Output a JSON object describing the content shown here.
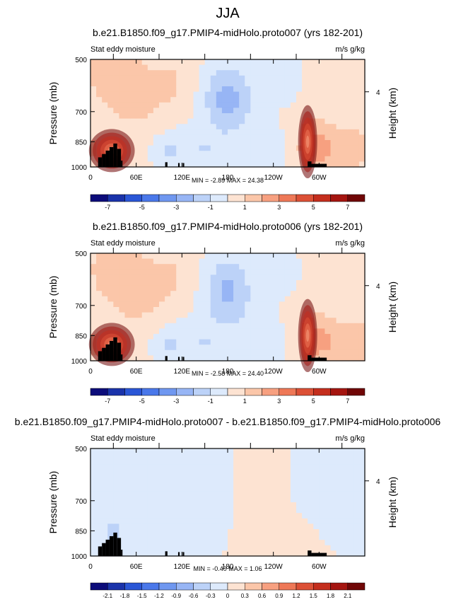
{
  "page_title": "JJA",
  "chart_data": [
    {
      "type": "heatmap",
      "title": "b.e21.B1850.f09_g17.PMIP4-midHolo.proto007 (yrs 182-201)",
      "left_label": "Stat eddy moisture",
      "right_label": "m/s g/kg",
      "ylabel": "Pressure (mb)",
      "ylabel_right": "Height (km)",
      "xticks": [
        "0",
        "60E",
        "120E",
        "180",
        "120W",
        "60W"
      ],
      "yticks": [
        "500",
        "700",
        "850",
        "1000"
      ],
      "right_ticks": [
        "4"
      ],
      "stats": "MIN = -2.89  MAX = 24.38",
      "colorbar_labels": [
        "-7",
        "-5",
        "-3",
        "-1",
        "1",
        "3",
        "5",
        "7"
      ],
      "colorbar_levels": [
        -8,
        -7,
        -6,
        -5,
        -4,
        -3,
        -2,
        -1,
        0,
        1,
        2,
        3,
        4,
        5,
        6,
        7,
        8
      ],
      "min": -2.89,
      "max": 24.38,
      "xlim": [
        0,
        360
      ],
      "ylim": [
        1000,
        500
      ]
    },
    {
      "type": "heatmap",
      "title": "b.e21.B1850.f09_g17.PMIP4-midHolo.proto006 (yrs 182-201)",
      "left_label": "Stat eddy moisture",
      "right_label": "m/s g/kg",
      "ylabel": "Pressure (mb)",
      "ylabel_right": "Height (km)",
      "xticks": [
        "0",
        "60E",
        "120E",
        "180",
        "120W",
        "60W"
      ],
      "yticks": [
        "500",
        "700",
        "850",
        "1000"
      ],
      "right_ticks": [
        "4"
      ],
      "stats": "MIN = -2.58  MAX = 24.40",
      "colorbar_labels": [
        "-7",
        "-5",
        "-3",
        "-1",
        "1",
        "3",
        "5",
        "7"
      ],
      "colorbar_levels": [
        -8,
        -7,
        -6,
        -5,
        -4,
        -3,
        -2,
        -1,
        0,
        1,
        2,
        3,
        4,
        5,
        6,
        7,
        8
      ],
      "min": -2.58,
      "max": 24.4,
      "xlim": [
        0,
        360
      ],
      "ylim": [
        1000,
        500
      ]
    },
    {
      "type": "heatmap",
      "title": "b.e21.B1850.f09_g17.PMIP4-midHolo.proto007 - b.e21.B1850.f09_g17.PMIP4-midHolo.proto006",
      "left_label": "Stat eddy moisture",
      "right_label": "m/s g/kg",
      "ylabel": "Pressure (mb)",
      "ylabel_right": "Height (km)",
      "xticks": [
        "0",
        "60E",
        "120E",
        "180",
        "120W",
        "60W"
      ],
      "yticks": [
        "500",
        "700",
        "850",
        "1000"
      ],
      "right_ticks": [
        "4"
      ],
      "stats": "MIN = -0.40  MAX =  1.06",
      "colorbar_labels": [
        "-2.1",
        "-1.8",
        "-1.5",
        "-1.2",
        "-0.9",
        "-0.6",
        "-0.3",
        "0",
        "0.3",
        "0.6",
        "0.9",
        "1.2",
        "1.5",
        "1.8",
        "2.1"
      ],
      "colorbar_levels": [
        -2.4,
        -2.1,
        -1.8,
        -1.5,
        -1.2,
        -0.9,
        -0.6,
        -0.3,
        0,
        0.3,
        0.6,
        0.9,
        1.2,
        1.5,
        1.8,
        2.1,
        2.4
      ],
      "min": -0.4,
      "max": 1.06,
      "xlim": [
        0,
        360
      ],
      "ylim": [
        1000,
        500
      ]
    }
  ],
  "colors": {
    "palette": [
      "#0c0c7a",
      "#1a33aa",
      "#2a56d6",
      "#4a78ea",
      "#6f97f0",
      "#97b5f5",
      "#bcd2f8",
      "#ddeafc",
      "#fde3d2",
      "#fbc6a9",
      "#f7a080",
      "#ee7857",
      "#dc5036",
      "#c42e1d",
      "#a51510",
      "#700606"
    ],
    "topography": "#000000"
  }
}
